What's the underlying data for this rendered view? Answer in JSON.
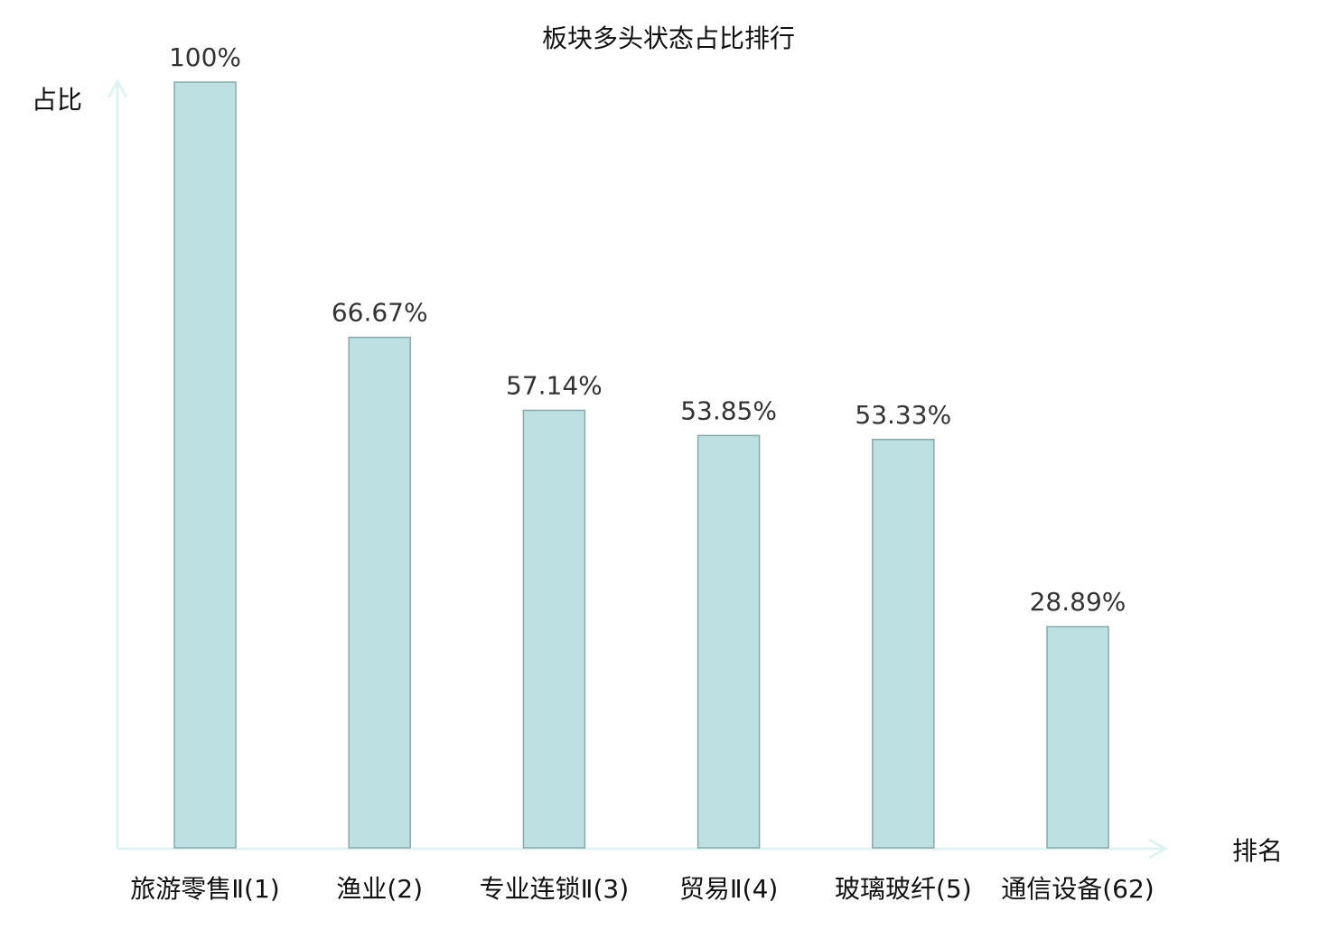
{
  "chart_data": {
    "type": "bar",
    "title": "板块多头状态占比排行",
    "xlabel": "排名",
    "ylabel": "占比",
    "categories": [
      "旅游零售Ⅱ(1)",
      "渔业(2)",
      "专业连锁Ⅱ(3)",
      "贸易Ⅱ(4)",
      "玻璃玻纤(5)",
      "通信设备(62)"
    ],
    "values": [
      100,
      66.67,
      57.14,
      53.85,
      53.33,
      28.89
    ],
    "value_labels": [
      "100%",
      "66.67%",
      "57.14%",
      "53.85%",
      "53.33%",
      "28.89%"
    ],
    "highlighted_category": "通信设备(62)",
    "ylim": [
      0,
      100
    ],
    "grid": false,
    "legend": "none",
    "colors": {
      "bar_fill": "#bde0e3",
      "bar_stroke": "#8aa8aa",
      "axis": "#dff3f1",
      "highlight_label": "#e8141b"
    }
  }
}
